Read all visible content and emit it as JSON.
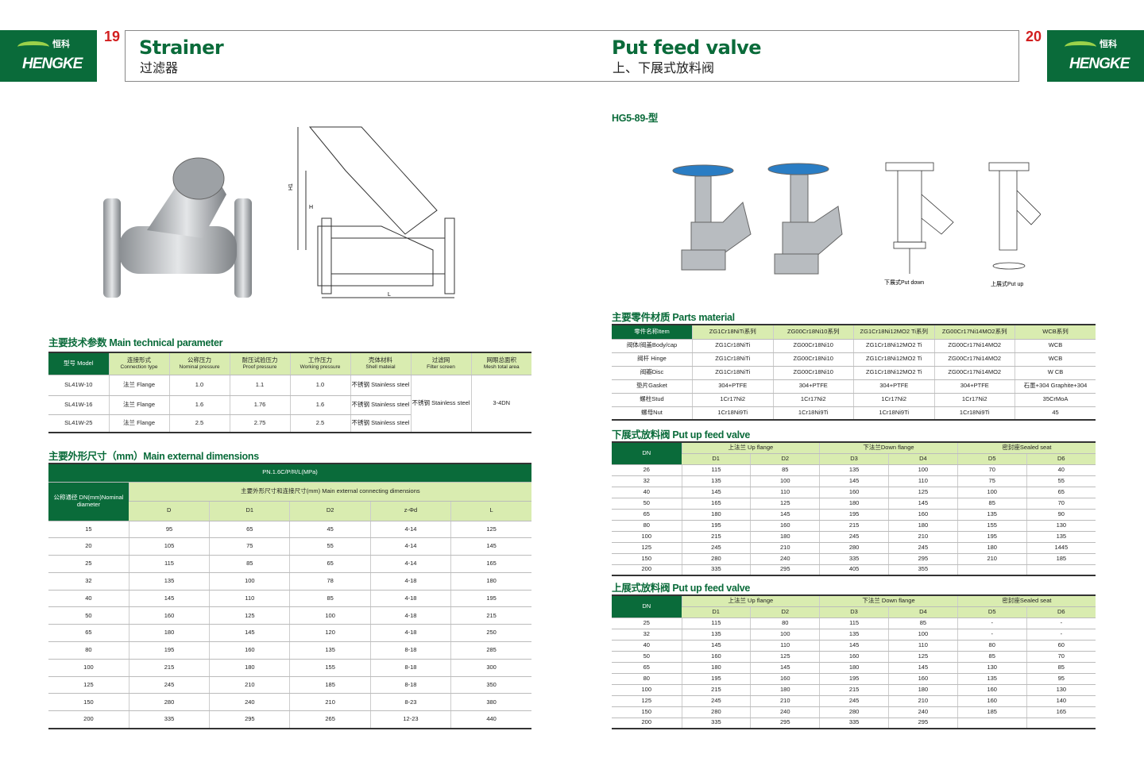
{
  "brand": {
    "name": "HENGKE",
    "cn": "恒科"
  },
  "left": {
    "page": "19",
    "title_en": "Strainer",
    "title_cn": "过滤器",
    "drawing_labels": {
      "h1": "H1",
      "h": "H",
      "l": "L"
    },
    "tech_title": "主要技术参数 Main technical parameter",
    "tech_headers": [
      [
        "型号 Model",
        ""
      ],
      [
        "连接形式",
        "Connection type"
      ],
      [
        "公称压力",
        "Nominal pressure"
      ],
      [
        "耐压试验压力",
        "Proof pressure"
      ],
      [
        "工作压力",
        "Working pressure"
      ],
      [
        "壳体材料",
        "Shell mateial"
      ],
      [
        "过滤网",
        "Filter screen"
      ],
      [
        "网眼总面积",
        "Mesh total area"
      ]
    ],
    "tech_rows": [
      [
        "SL41W-10",
        "法兰 Flange",
        "1.0",
        "1.1",
        "1.0",
        "不锈钢 Stainless steel"
      ],
      [
        "SL41W-16",
        "法兰 Flange",
        "1.6",
        "1.76",
        "1.6",
        "不锈钢 Stainless steel"
      ],
      [
        "SL41W-25",
        "法兰 Flange",
        "2.5",
        "2.75",
        "2.5",
        "不锈钢 Stainless steel"
      ]
    ],
    "tech_merged": {
      "filter": "不锈钢 Stainless steel",
      "mesh": "3-4DN"
    },
    "dim_title": "主要外形尺寸（mm）Main external dimensions",
    "dim_pn": "PN.1.6C/P/R/L(MPa)",
    "dim_dn": "公称通径 DN(mm)Nominal diameter",
    "dim_group": "主要外形尺寸和连接尺寸(mm) Main external connecting dimensions",
    "dim_cols": [
      "D",
      "D1",
      "D2",
      "z-Φd",
      "L"
    ],
    "dim_rows": [
      [
        "15",
        "95",
        "65",
        "45",
        "4-14",
        "125"
      ],
      [
        "20",
        "105",
        "75",
        "55",
        "4-14",
        "145"
      ],
      [
        "25",
        "115",
        "85",
        "65",
        "4-14",
        "165"
      ],
      [
        "32",
        "135",
        "100",
        "78",
        "4-18",
        "180"
      ],
      [
        "40",
        "145",
        "110",
        "85",
        "4-18",
        "195"
      ],
      [
        "50",
        "160",
        "125",
        "100",
        "4-18",
        "215"
      ],
      [
        "65",
        "180",
        "145",
        "120",
        "4-18",
        "250"
      ],
      [
        "80",
        "195",
        "160",
        "135",
        "8-18",
        "285"
      ],
      [
        "100",
        "215",
        "180",
        "155",
        "8-18",
        "300"
      ],
      [
        "125",
        "245",
        "210",
        "185",
        "8-18",
        "350"
      ],
      [
        "150",
        "280",
        "240",
        "210",
        "8-23",
        "380"
      ],
      [
        "200",
        "335",
        "295",
        "265",
        "12-23",
        "440"
      ]
    ]
  },
  "right": {
    "page": "20",
    "title_en": "Put feed valve",
    "title_cn": "上、下展式放料阀",
    "model": "HG5-89-型",
    "cap_down": "下展式Put down",
    "cap_up": "上展式Put up",
    "parts_title": "主要零件材质 Parts material",
    "parts_headers": [
      "零件名称Item",
      "ZG1Cr18NiTi系列",
      "ZG00Cr18Ni10系列",
      "ZG1Cr18Ni12MO2 Ti系列",
      "ZG00Cr17Ni14MO2系列",
      "WCB系列"
    ],
    "parts_rows": [
      [
        "阀体/阀盖Body/cap",
        "ZG1Cr18NiTi",
        "ZG00Cr18Ni10",
        "ZG1Cr18Ni12MO2 Ti",
        "ZG00Cr17Ni14MO2",
        "WCB"
      ],
      [
        "阀杆 Hinge",
        "ZG1Cr18NiTi",
        "ZG00Cr18Ni10",
        "ZG1Cr18Ni12MO2 Ti",
        "ZG00Cr17Ni14MO2",
        "WCB"
      ],
      [
        "阀瓣Disc",
        "ZG1Cr18NiTi",
        "ZG00Cr18Ni10",
        "ZG1Cr18Ni12MO2 Ti",
        "ZG00Cr17Ni14MO2",
        "W CB"
      ],
      [
        "垫片Gasket",
        "304+PTFE",
        "304+PTFE",
        "304+PTFE",
        "304+PTFE",
        "石墨+304 Graphite+304"
      ],
      [
        "螺柱Stud",
        "1Cr17Ni2",
        "1Cr17Ni2",
        "1Cr17Ni2",
        "1Cr17Ni2",
        "35CrMoA"
      ],
      [
        "螺母Nut",
        "1Cr18Ni9Ti",
        "1Cr18Ni9Ti",
        "1Cr18Ni9Ti",
        "1Cr18Ni9Ti",
        "45"
      ]
    ],
    "down_title": "下展式放料阀 Put up feed valve",
    "up_title": "上展式放料阀 Put up feed valve",
    "groups_down": [
      "上法兰 Up flange",
      "下法兰Down flange",
      "密封座Sealed seat"
    ],
    "groups_up": [
      "上法兰 Up flange",
      "下法兰 Down flange",
      "密封座Sealed seat"
    ],
    "dn": "DN",
    "sub_cols": [
      "D1",
      "D2",
      "D3",
      "D4",
      "D5",
      "D6"
    ],
    "down_rows": [
      [
        "26",
        "115",
        "85",
        "135",
        "100",
        "70",
        "40"
      ],
      [
        "32",
        "135",
        "100",
        "145",
        "110",
        "75",
        "55"
      ],
      [
        "40",
        "145",
        "110",
        "160",
        "125",
        "100",
        "65"
      ],
      [
        "50",
        "165",
        "125",
        "180",
        "145",
        "85",
        "70"
      ],
      [
        "65",
        "180",
        "145",
        "195",
        "160",
        "135",
        "90"
      ],
      [
        "80",
        "195",
        "160",
        "215",
        "180",
        "155",
        "130"
      ],
      [
        "100",
        "215",
        "180",
        "245",
        "210",
        "195",
        "135"
      ],
      [
        "125",
        "245",
        "210",
        "280",
        "245",
        "180",
        "1445"
      ],
      [
        "150",
        "280",
        "240",
        "335",
        "295",
        "210",
        "185"
      ],
      [
        "200",
        "335",
        "295",
        "405",
        "355",
        "",
        ""
      ]
    ],
    "up_rows": [
      [
        "25",
        "115",
        "80",
        "115",
        "85",
        "-",
        "-"
      ],
      [
        "32",
        "135",
        "100",
        "135",
        "100",
        "-",
        "-"
      ],
      [
        "40",
        "145",
        "110",
        "145",
        "110",
        "80",
        "60"
      ],
      [
        "50",
        "160",
        "125",
        "160",
        "125",
        "85",
        "70"
      ],
      [
        "65",
        "180",
        "145",
        "180",
        "145",
        "130",
        "85"
      ],
      [
        "80",
        "195",
        "160",
        "195",
        "160",
        "135",
        "95"
      ],
      [
        "100",
        "215",
        "180",
        "215",
        "180",
        "160",
        "130"
      ],
      [
        "125",
        "245",
        "210",
        "245",
        "210",
        "160",
        "140"
      ],
      [
        "150",
        "280",
        "240",
        "280",
        "240",
        "185",
        "165"
      ],
      [
        "200",
        "335",
        "295",
        "335",
        "295",
        "",
        ""
      ]
    ]
  },
  "colors": {
    "brand_green": "#0a6b3a",
    "light_green": "#d9ecb0",
    "page_red": "#d21f1f"
  }
}
